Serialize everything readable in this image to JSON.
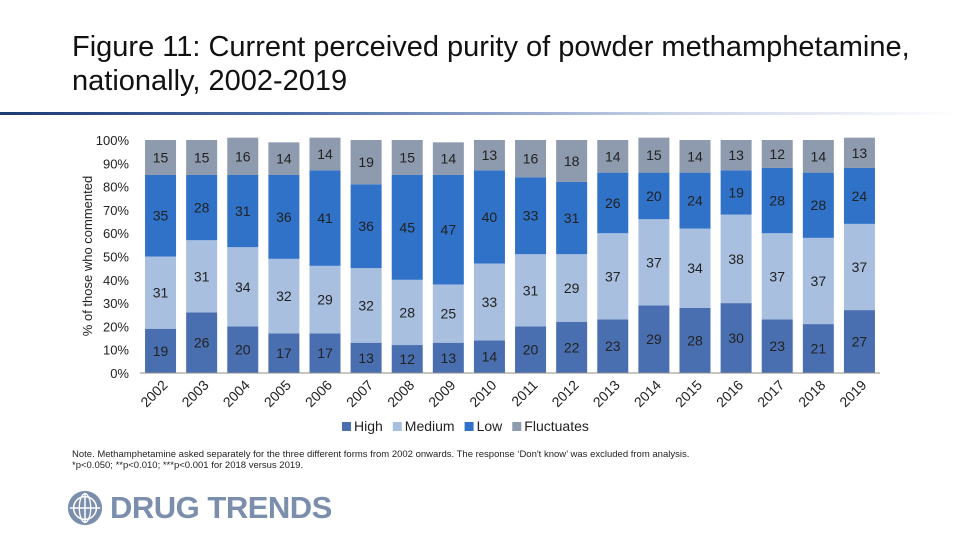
{
  "title": "Figure 11: Current perceived purity of powder methamphetamine, nationally, 2002-2019",
  "note_line1": "Note. Methamphetamine asked separately for the three different forms from 2002 onwards. The response ‘Don't know’ was excluded from analysis.",
  "note_line2": "*p<0.050; **p<0.010; ***p<0.001 for 2018 versus 2019.",
  "logo_text": "DRUG TRENDS",
  "colors": {
    "High": "#4a6fb0",
    "Medium": "#a8bfe0",
    "Low": "#2f72c8",
    "Fluctuates": "#8e9aae"
  },
  "chart_data": {
    "type": "bar",
    "stacked": true,
    "percent_scale": true,
    "title": "Figure 11: Current perceived purity of powder methamphetamine, nationally, 2002-2019",
    "xlabel": "",
    "ylabel": "% of those who commented",
    "ylim": [
      0,
      100
    ],
    "yticks": [
      "0%",
      "10%",
      "20%",
      "30%",
      "40%",
      "50%",
      "60%",
      "70%",
      "80%",
      "90%",
      "100%"
    ],
    "categories": [
      "2002",
      "2003",
      "2004",
      "2005",
      "2006",
      "2007",
      "2008",
      "2009",
      "2010",
      "2011",
      "2012",
      "2013",
      "2014",
      "2015",
      "2016",
      "2017",
      "2018",
      "2019"
    ],
    "legend_position": "bottom",
    "series": [
      {
        "name": "High",
        "values": [
          19,
          26,
          20,
          17,
          17,
          13,
          12,
          13,
          14,
          20,
          22,
          23,
          29,
          28,
          30,
          23,
          21,
          27
        ]
      },
      {
        "name": "Medium",
        "values": [
          31,
          31,
          34,
          32,
          29,
          32,
          28,
          25,
          33,
          31,
          29,
          37,
          37,
          34,
          38,
          37,
          37,
          37
        ]
      },
      {
        "name": "Low",
        "values": [
          35,
          28,
          31,
          36,
          41,
          36,
          45,
          47,
          40,
          33,
          31,
          26,
          20,
          24,
          19,
          28,
          28,
          24
        ]
      },
      {
        "name": "Fluctuates",
        "values": [
          15,
          15,
          16,
          14,
          14,
          19,
          15,
          14,
          13,
          16,
          18,
          14,
          15,
          14,
          13,
          12,
          14,
          13
        ]
      }
    ]
  }
}
